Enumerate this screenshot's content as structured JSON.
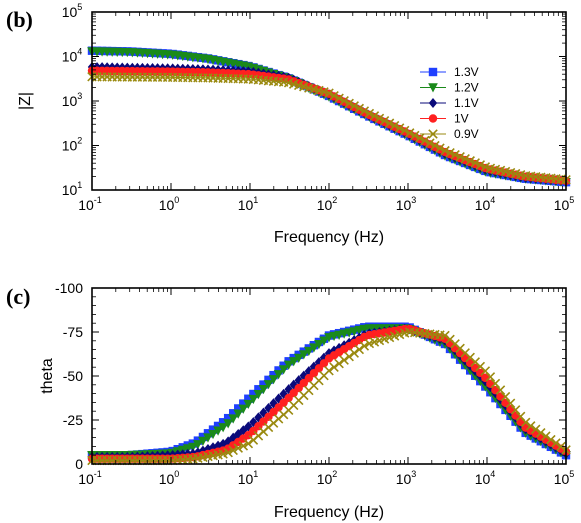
{
  "chart_data": [
    {
      "panel": "(b)",
      "type": "line",
      "xlabel": "Frequency (Hz)",
      "ylabel": "|Z|",
      "xscale": "log",
      "yscale": "log",
      "xlim": [
        0.1,
        100000
      ],
      "ylim": [
        10,
        100000
      ],
      "x_tick_labels": [
        {
          "base": "10",
          "exp": "-1"
        },
        {
          "base": "10",
          "exp": "0"
        },
        {
          "base": "10",
          "exp": "1"
        },
        {
          "base": "10",
          "exp": "2"
        },
        {
          "base": "10",
          "exp": "3"
        },
        {
          "base": "10",
          "exp": "4"
        },
        {
          "base": "10",
          "exp": "5"
        }
      ],
      "y_tick_labels": [
        {
          "base": "10",
          "exp": "1"
        },
        {
          "base": "10",
          "exp": "2"
        },
        {
          "base": "10",
          "exp": "3"
        },
        {
          "base": "10",
          "exp": "4"
        },
        {
          "base": "10",
          "exp": "5"
        }
      ],
      "legend_position": "right",
      "series": [
        {
          "name": "1.3V",
          "color": "#1f3fff",
          "marker": "square",
          "x": [
            0.1,
            0.3,
            1,
            3,
            10,
            30,
            100,
            300,
            1000,
            3000,
            10000,
            30000,
            100000
          ],
          "y": [
            13500,
            13000,
            11500,
            9000,
            6000,
            3300,
            1300,
            480,
            170,
            60,
            26,
            18,
            15
          ]
        },
        {
          "name": "1.2V",
          "color": "#1a8a1a",
          "marker": "triangle-down",
          "x": [
            0.1,
            0.3,
            1,
            3,
            10,
            30,
            100,
            300,
            1000,
            3000,
            10000,
            30000,
            100000
          ],
          "y": [
            13000,
            12500,
            11000,
            8700,
            5800,
            3200,
            1250,
            470,
            165,
            58,
            25,
            18,
            15
          ]
        },
        {
          "name": "1.1V",
          "color": "#0a0a7a",
          "marker": "diamond",
          "x": [
            0.1,
            0.3,
            1,
            3,
            10,
            30,
            100,
            300,
            1000,
            3000,
            10000,
            30000,
            100000
          ],
          "y": [
            5800,
            5600,
            5400,
            5100,
            4600,
            3400,
            1400,
            500,
            180,
            65,
            28,
            19,
            16
          ]
        },
        {
          "name": "1V",
          "color": "#ff2020",
          "marker": "circle",
          "x": [
            0.1,
            0.3,
            1,
            3,
            10,
            30,
            100,
            300,
            1000,
            3000,
            10000,
            30000,
            100000
          ],
          "y": [
            4800,
            4700,
            4600,
            4400,
            4000,
            3100,
            1450,
            520,
            190,
            70,
            30,
            20,
            16
          ]
        },
        {
          "name": "0.9V",
          "color": "#9a8a10",
          "marker": "x",
          "x": [
            0.1,
            0.3,
            1,
            3,
            10,
            30,
            100,
            300,
            1000,
            3000,
            10000,
            30000,
            100000
          ],
          "y": [
            3500,
            3450,
            3400,
            3300,
            3100,
            2600,
            1500,
            560,
            200,
            75,
            32,
            21,
            17
          ]
        }
      ]
    },
    {
      "panel": "(c)",
      "type": "line",
      "xlabel": "Frequency (Hz)",
      "ylabel": "theta",
      "xscale": "log",
      "xlim": [
        0.1,
        100000
      ],
      "ylim": [
        0,
        -100
      ],
      "x_tick_labels": [
        {
          "base": "10",
          "exp": "-1"
        },
        {
          "base": "10",
          "exp": "0"
        },
        {
          "base": "10",
          "exp": "1"
        },
        {
          "base": "10",
          "exp": "2"
        },
        {
          "base": "10",
          "exp": "3"
        },
        {
          "base": "10",
          "exp": "4"
        },
        {
          "base": "10",
          "exp": "5"
        }
      ],
      "y_ticks": [
        0,
        -25,
        -50,
        -75,
        -100
      ],
      "y_tick_labels": [
        "0",
        "-25",
        "-50",
        "-75",
        "-100"
      ],
      "series": [
        {
          "name": "1.3V",
          "color": "#1f3fff",
          "marker": "square",
          "x": [
            0.1,
            0.3,
            1,
            2,
            5,
            10,
            30,
            100,
            300,
            1000,
            3000,
            10000,
            30000,
            100000
          ],
          "y": [
            -5,
            -5,
            -7,
            -12,
            -25,
            -38,
            -58,
            -73,
            -78,
            -78,
            -68,
            -43,
            -18,
            -5
          ]
        },
        {
          "name": "1.2V",
          "color": "#1a8a1a",
          "marker": "triangle-down",
          "x": [
            0.1,
            0.3,
            1,
            2,
            5,
            10,
            30,
            100,
            300,
            1000,
            3000,
            10000,
            30000,
            100000
          ],
          "y": [
            -5,
            -5,
            -6,
            -10,
            -22,
            -35,
            -56,
            -72,
            -77,
            -77,
            -68,
            -43,
            -18,
            -5
          ]
        },
        {
          "name": "1.1V",
          "color": "#0a0a7a",
          "marker": "diamond",
          "x": [
            0.1,
            0.3,
            1,
            2,
            5,
            10,
            30,
            100,
            300,
            1000,
            3000,
            10000,
            30000,
            100000
          ],
          "y": [
            -4,
            -4,
            -5,
            -6,
            -12,
            -22,
            -42,
            -63,
            -74,
            -77,
            -70,
            -46,
            -20,
            -6
          ]
        },
        {
          "name": "1V",
          "color": "#ff2020",
          "marker": "circle",
          "x": [
            0.1,
            0.3,
            1,
            2,
            5,
            10,
            30,
            100,
            300,
            1000,
            3000,
            10000,
            30000,
            100000
          ],
          "y": [
            -3,
            -3,
            -3,
            -4,
            -8,
            -17,
            -37,
            -60,
            -73,
            -77,
            -71,
            -48,
            -21,
            -7
          ]
        },
        {
          "name": "0.9V",
          "color": "#9a8a10",
          "marker": "x",
          "x": [
            0.1,
            0.3,
            1,
            2,
            5,
            10,
            30,
            100,
            300,
            1000,
            3000,
            10000,
            30000,
            100000
          ],
          "y": [
            -2,
            -2,
            -2,
            -3,
            -6,
            -12,
            -30,
            -53,
            -68,
            -75,
            -73,
            -52,
            -24,
            -8
          ]
        }
      ]
    }
  ]
}
